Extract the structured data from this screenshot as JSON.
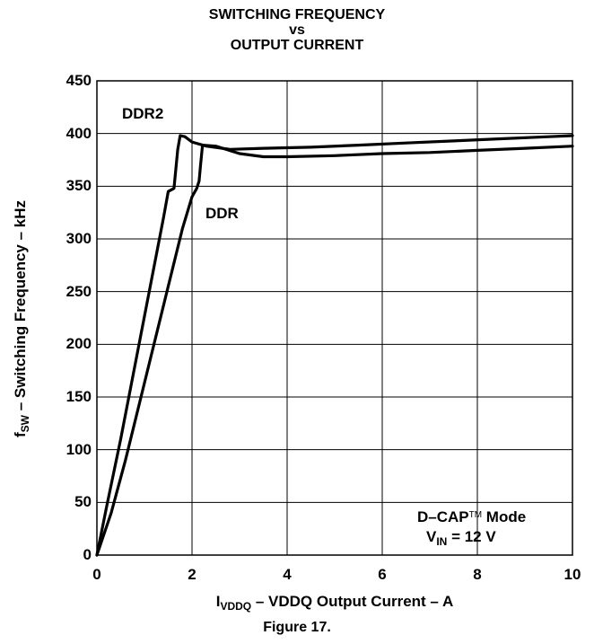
{
  "chart_data": {
    "type": "line",
    "title_lines": [
      "SWITCHING FREQUENCY",
      "vs",
      "OUTPUT CURRENT"
    ],
    "xlabel": {
      "prefix": "I",
      "sub": "VDDQ",
      "suffix": " – VDDQ Output Current – A"
    },
    "ylabel": {
      "prefix": "f",
      "sub": "SW",
      "suffix": " – Switching Frequency – kHz"
    },
    "xlim": [
      0,
      10
    ],
    "ylim": [
      0,
      450
    ],
    "xticks": [
      "0",
      "2",
      "4",
      "6",
      "8",
      "10"
    ],
    "yticks": [
      "0",
      "50",
      "100",
      "150",
      "200",
      "250",
      "300",
      "350",
      "400",
      "450"
    ],
    "grid": true,
    "series": [
      {
        "name": "DDR2",
        "x": [
          0,
          0.2,
          0.5,
          0.8,
          1.1,
          1.4,
          1.5,
          1.62,
          1.7,
          1.75,
          1.85,
          2.0,
          2.3,
          2.8,
          3.5,
          4.5,
          5.5,
          6.5,
          7.5,
          8.5,
          9.5,
          10
        ],
        "y": [
          0,
          45,
          110,
          180,
          250,
          320,
          345,
          348,
          385,
          398,
          397,
          392,
          388,
          385,
          386,
          387,
          389,
          391,
          393,
          395,
          397,
          398
        ]
      },
      {
        "name": "DDR",
        "x": [
          0,
          0.3,
          0.6,
          0.9,
          1.2,
          1.5,
          1.8,
          2.0,
          2.1,
          2.15,
          2.18,
          2.22,
          2.5,
          3.0,
          3.5,
          4.0,
          5.0,
          6.0,
          7.0,
          8.0,
          9.0,
          10
        ],
        "y": [
          0,
          40,
          90,
          145,
          200,
          255,
          310,
          340,
          348,
          355,
          370,
          389,
          388,
          381,
          378,
          378,
          379,
          381,
          382,
          384,
          386,
          388
        ]
      }
    ],
    "annotations": {
      "ddr2_label": "DDR2",
      "ddr_label": "DDR",
      "mode_prefix": "D–CAP",
      "mode_tm": "TM",
      "mode_suffix": "  Mode",
      "vin_prefix": "V",
      "vin_sub": "IN",
      "vin_suffix": " = 12 V"
    },
    "caption": "Figure 17."
  }
}
